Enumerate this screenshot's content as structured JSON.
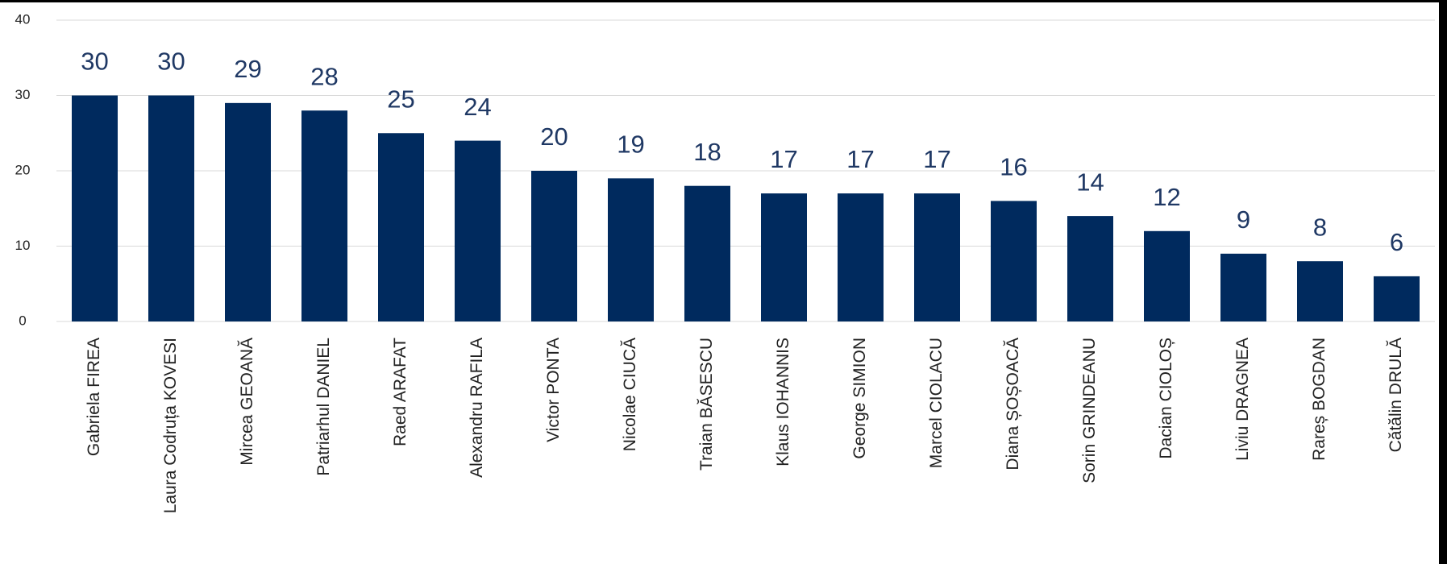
{
  "chart_data": {
    "type": "bar",
    "categories": [
      "Gabriela FIREA",
      "Laura Codruța KOVESI",
      "Mircea GEOANĂ",
      "Patriarhul DANIEL",
      "Raed ARAFAT",
      "Alexandru RAFILA",
      "Victor PONTA",
      "Nicolae CIUCĂ",
      "Traian BĂSESCU",
      "Klaus IOHANNIS",
      "George SIMION",
      "Marcel CIOLACU",
      "Diana ȘOȘOACĂ",
      "Sorin GRINDEANU",
      "Dacian CIOLOȘ",
      "Liviu DRAGNEA",
      "Rareș BOGDAN",
      "Cătălin DRULĂ"
    ],
    "values": [
      30,
      30,
      29,
      28,
      25,
      24,
      20,
      19,
      18,
      17,
      17,
      17,
      16,
      14,
      12,
      9,
      8,
      6
    ],
    "color": "#002a5e",
    "ylim": [
      0,
      40
    ],
    "yticks": [
      0,
      10,
      20,
      30,
      40
    ],
    "grid": true
  }
}
